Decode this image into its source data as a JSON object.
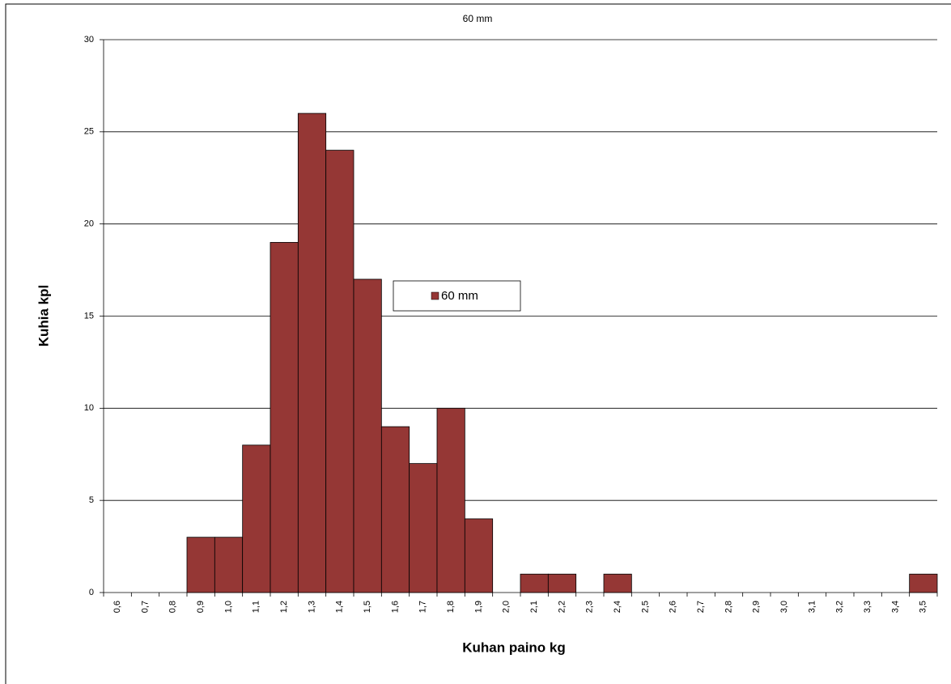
{
  "chart_data": {
    "type": "bar",
    "title": "60 mm",
    "x_label": "Kuhan paino kg",
    "y_label": "Kuhia kpl",
    "categories": [
      "0,6",
      "0,7",
      "0,8",
      "0,9",
      "1,0",
      "1,1",
      "1,2",
      "1,3",
      "1,4",
      "1,5",
      "1,6",
      "1,7",
      "1,8",
      "1,9",
      "2,0",
      "2,1",
      "2,2",
      "2,3",
      "2,4",
      "2,5",
      "2,6",
      "2,7",
      "2,8",
      "2,9",
      "3,0",
      "3,1",
      "3,2",
      "3,3",
      "3,4",
      "3,5"
    ],
    "series": [
      {
        "name": "60 mm",
        "color": "#953735",
        "values": [
          0,
          0,
          0,
          3,
          3,
          8,
          19,
          26,
          24,
          17,
          9,
          7,
          10,
          4,
          0,
          1,
          1,
          0,
          1,
          0,
          0,
          0,
          0,
          0,
          0,
          0,
          0,
          0,
          0,
          1
        ]
      }
    ],
    "ylim": [
      0,
      30
    ],
    "yticks": [
      0,
      5,
      10,
      15,
      20,
      25,
      30
    ],
    "grid": true
  }
}
